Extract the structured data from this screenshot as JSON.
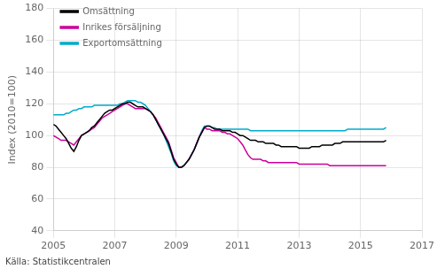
{
  "chart_data": {
    "type": "line",
    "ylabel": "Index (2010=100)",
    "source": "Källa: Statistikcentralen",
    "xlim": [
      2005,
      2017
    ],
    "ylim": [
      40,
      180
    ],
    "xticks": [
      2005,
      2007,
      2009,
      2011,
      2013,
      2015,
      2017
    ],
    "yticks": [
      40,
      60,
      80,
      100,
      120,
      140,
      160,
      180
    ],
    "grid": true,
    "legend": "upper left",
    "x": [
      2005,
      2005.083333333333,
      2005.166666666667,
      2005.25,
      2005.333333333333,
      2005.416666666667,
      2005.5,
      2005.583333333333,
      2005.666666666667,
      2005.75,
      2005.833333333333,
      2005.916666666667,
      2006,
      2006.083333333333,
      2006.166666666667,
      2006.25,
      2006.333333333333,
      2006.416666666667,
      2006.5,
      2006.583333333333,
      2006.666666666667,
      2006.75,
      2006.833333333333,
      2006.916666666667,
      2007,
      2007.083333333333,
      2007.166666666667,
      2007.25,
      2007.333333333333,
      2007.416666666667,
      2007.5,
      2007.583333333333,
      2007.666666666667,
      2007.75,
      2007.833333333333,
      2007.916666666667,
      2008,
      2008.083333333333,
      2008.166666666667,
      2008.25,
      2008.333333333333,
      2008.416666666667,
      2008.5,
      2008.583333333333,
      2008.666666666667,
      2008.75,
      2008.833333333333,
      2008.916666666667,
      2009,
      2009.083333333333,
      2009.166666666667,
      2009.25,
      2009.333333333333,
      2009.416666666667,
      2009.5,
      2009.583333333333,
      2009.666666666667,
      2009.75,
      2009.833333333333,
      2009.916666666667,
      2010,
      2010.083333333333,
      2010.166666666667,
      2010.25,
      2010.333333333333,
      2010.416666666667,
      2010.5,
      2010.583333333333,
      2010.666666666667,
      2010.75,
      2010.833333333333,
      2010.916666666667,
      2011,
      2011.083333333333,
      2011.166666666667,
      2011.25,
      2011.333333333333,
      2011.416666666667,
      2011.5,
      2011.583333333333,
      2011.666666666667,
      2011.75,
      2011.833333333333,
      2011.916666666667,
      2012,
      2012.083333333333,
      2012.166666666667,
      2012.25,
      2012.333333333333,
      2012.416666666667,
      2012.5,
      2012.583333333333,
      2012.666666666667,
      2012.75,
      2012.833333333333,
      2012.916666666667,
      2013,
      2013.083333333333,
      2013.166666666667,
      2013.25,
      2013.333333333333,
      2013.416666666667,
      2013.5,
      2013.583333333333,
      2013.666666666667,
      2013.75,
      2013.833333333333,
      2013.916666666667,
      2014,
      2014.083333333333,
      2014.166666666667,
      2014.25,
      2014.333333333333,
      2014.416666666667,
      2014.5,
      2014.583333333333,
      2014.666666666667,
      2014.75,
      2014.833333333333,
      2014.916666666667,
      2015,
      2015.083333333333,
      2015.166666666667,
      2015.25,
      2015.333333333333,
      2015.416666666667,
      2015.5,
      2015.583333333333,
      2015.666666666667,
      2015.75,
      2015.833333333333
    ],
    "series": [
      {
        "name": "Omsättning",
        "color": "#000000",
        "values": [
          107,
          106,
          104,
          102,
          100,
          98,
          95,
          92,
          90,
          93,
          97,
          100,
          101,
          102,
          103,
          105,
          106,
          108,
          110,
          112,
          114,
          115,
          116,
          116,
          117,
          118,
          119,
          120,
          120,
          121,
          121,
          120,
          119,
          118,
          118,
          118,
          117,
          116,
          115,
          113,
          110,
          107,
          104,
          101,
          98,
          95,
          90,
          85,
          82,
          80,
          80,
          81,
          83,
          85,
          88,
          91,
          95,
          99,
          102,
          105,
          106,
          106,
          105,
          104,
          104,
          104,
          103,
          103,
          103,
          103,
          102,
          102,
          101,
          100,
          100,
          99,
          98,
          97,
          97,
          97,
          96,
          96,
          96,
          95,
          95,
          95,
          95,
          94,
          94,
          93,
          93,
          93,
          93,
          93,
          93,
          93,
          92,
          92,
          92,
          92,
          92,
          93,
          93,
          93,
          93,
          94,
          94,
          94,
          94,
          94,
          95,
          95,
          95,
          96,
          96,
          96,
          96,
          96,
          96,
          96,
          96,
          96,
          96,
          96,
          96,
          96,
          96,
          96,
          96,
          96,
          97
        ]
      },
      {
        "name": "Inrikes försäljning",
        "color": "#cc0099",
        "values": [
          100,
          99,
          98,
          97,
          97,
          97,
          96,
          95,
          94,
          96,
          98,
          100,
          101,
          102,
          103,
          104,
          105,
          107,
          109,
          111,
          112,
          113,
          114,
          115,
          116,
          117,
          118,
          119,
          120,
          120,
          119,
          118,
          117,
          117,
          117,
          117,
          117,
          116,
          115,
          113,
          111,
          108,
          105,
          102,
          99,
          96,
          91,
          86,
          83,
          80,
          80,
          81,
          83,
          85,
          88,
          91,
          95,
          99,
          102,
          105,
          104,
          104,
          103,
          103,
          103,
          103,
          102,
          102,
          101,
          101,
          100,
          99,
          98,
          96,
          94,
          91,
          88,
          86,
          85,
          85,
          85,
          85,
          84,
          84,
          83,
          83,
          83,
          83,
          83,
          83,
          83,
          83,
          83,
          83,
          83,
          83,
          82,
          82,
          82,
          82,
          82,
          82,
          82,
          82,
          82,
          82,
          82,
          82,
          81,
          81,
          81,
          81,
          81,
          81,
          81,
          81,
          81,
          81,
          81,
          81,
          81,
          81,
          81,
          81,
          81,
          81,
          81,
          81,
          81,
          81,
          81
        ]
      },
      {
        "name": "Exportomsättning",
        "color": "#00aacc",
        "values": [
          113,
          113,
          113,
          113,
          113,
          114,
          114,
          115,
          116,
          116,
          117,
          117,
          118,
          118,
          118,
          118,
          119,
          119,
          119,
          119,
          119,
          119,
          119,
          119,
          119,
          119,
          120,
          120,
          121,
          122,
          122,
          122,
          122,
          121,
          121,
          120,
          119,
          117,
          115,
          113,
          110,
          107,
          104,
          101,
          97,
          93,
          89,
          84,
          81,
          80,
          80,
          81,
          83,
          85,
          88,
          91,
          95,
          99,
          103,
          106,
          106,
          106,
          105,
          105,
          104,
          104,
          104,
          104,
          104,
          104,
          104,
          104,
          104,
          104,
          104,
          104,
          104,
          103,
          103,
          103,
          103,
          103,
          103,
          103,
          103,
          103,
          103,
          103,
          103,
          103,
          103,
          103,
          103,
          103,
          103,
          103,
          103,
          103,
          103,
          103,
          103,
          103,
          103,
          103,
          103,
          103,
          103,
          103,
          103,
          103,
          103,
          103,
          103,
          103,
          103,
          104,
          104,
          104,
          104,
          104,
          104,
          104,
          104,
          104,
          104,
          104,
          104,
          104,
          104,
          104,
          105
        ]
      }
    ]
  }
}
